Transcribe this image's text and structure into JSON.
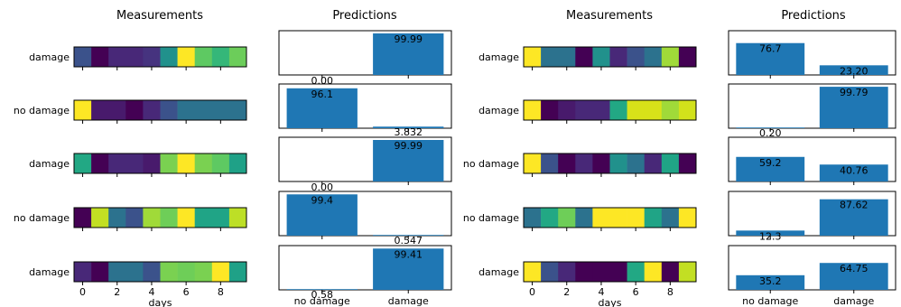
{
  "chart_data": [
    {
      "type": "heatmap",
      "title": "Measurements",
      "xlabel": "days",
      "x_ticks": [
        "0",
        "2",
        "4",
        "6",
        "8"
      ],
      "days": [
        0,
        1,
        2,
        3,
        4,
        5,
        6,
        7,
        8,
        9
      ],
      "rows": [
        {
          "label": "damage",
          "colors": [
            "#3b528b",
            "#440154",
            "#482878",
            "#482878",
            "#46337f",
            "#21918c",
            "#fde725",
            "#5ec962",
            "#35b779",
            "#6ccd5a"
          ]
        },
        {
          "label": "no damage",
          "colors": [
            "#fde725",
            "#481a6c",
            "#481a6c",
            "#440154",
            "#482878",
            "#3b528b",
            "#2c728e",
            "#2c728e",
            "#2c728e",
            "#2c728e"
          ]
        },
        {
          "label": "damage",
          "colors": [
            "#22a884",
            "#440154",
            "#482878",
            "#482878",
            "#481a6c",
            "#7ad151",
            "#fde725",
            "#7ad151",
            "#5ec962",
            "#1fa187"
          ]
        },
        {
          "label": "no damage",
          "colors": [
            "#440154",
            "#c2df23",
            "#2c728e",
            "#3b528b",
            "#a0da39",
            "#6ece58",
            "#fde725",
            "#20a486",
            "#20a486",
            "#bddf26"
          ]
        },
        {
          "label": "damage",
          "colors": [
            "#482878",
            "#440154",
            "#2c728e",
            "#2c728e",
            "#3b528b",
            "#7ad151",
            "#6ece58",
            "#7ad151",
            "#fde725",
            "#1fa187"
          ]
        }
      ]
    },
    {
      "type": "bar",
      "title": "Predictions",
      "categories": [
        "no damage",
        "damage"
      ],
      "ylim": [
        0,
        100
      ],
      "rows": [
        {
          "values": [
            0,
            99.99
          ],
          "labels": [
            "0.00",
            "99.99"
          ]
        },
        {
          "values": [
            96.1,
            3.832
          ],
          "labels": [
            "96.1",
            "3.832"
          ]
        },
        {
          "values": [
            0,
            99.99
          ],
          "labels": [
            "0.00",
            "99.99"
          ]
        },
        {
          "values": [
            99.4,
            0.547
          ],
          "labels": [
            "99.4",
            "0.547"
          ]
        },
        {
          "values": [
            0.58,
            99.41
          ],
          "labels": [
            "0.58",
            "99.41"
          ]
        }
      ]
    },
    {
      "type": "heatmap",
      "title": "Measurements",
      "xlabel": "days",
      "x_ticks": [
        "0",
        "2",
        "4",
        "6",
        "8"
      ],
      "days": [
        0,
        1,
        2,
        3,
        4,
        5,
        6,
        7,
        8,
        9
      ],
      "rows": [
        {
          "label": "damage",
          "colors": [
            "#fde725",
            "#2c728e",
            "#2c728e",
            "#440154",
            "#21918c",
            "#482878",
            "#3b528b",
            "#2c728e",
            "#a0da39",
            "#440154"
          ]
        },
        {
          "label": "damage",
          "colors": [
            "#fde725",
            "#440154",
            "#481a6c",
            "#482878",
            "#482878",
            "#22a884",
            "#d8e219",
            "#d8e219",
            "#a0da39",
            "#d2e21b"
          ]
        },
        {
          "label": "no damage",
          "colors": [
            "#fde725",
            "#3b528b",
            "#440154",
            "#482878",
            "#440154",
            "#21918c",
            "#2c728e",
            "#482878",
            "#20a486",
            "#440154"
          ]
        },
        {
          "label": "no damage",
          "colors": [
            "#2c728e",
            "#22a884",
            "#6ece58",
            "#2c728e",
            "#fde725",
            "#fde725",
            "#fde725",
            "#20a486",
            "#2c728e",
            "#fde725"
          ]
        },
        {
          "label": "damage",
          "colors": [
            "#fde725",
            "#3b528b",
            "#482878",
            "#440154",
            "#440154",
            "#440154",
            "#22a884",
            "#fde725",
            "#440154",
            "#c2df23"
          ]
        }
      ]
    },
    {
      "type": "bar",
      "title": "Predictions",
      "categories": [
        "no damage",
        "damage"
      ],
      "ylim": [
        0,
        100
      ],
      "rows": [
        {
          "values": [
            76.7,
            23.2
          ],
          "labels": [
            "76.7",
            "23.20"
          ]
        },
        {
          "values": [
            0.2,
            99.79
          ],
          "labels": [
            "0.20",
            "99.79"
          ]
        },
        {
          "values": [
            59.2,
            40.76
          ],
          "labels": [
            "59.2",
            "40.76"
          ]
        },
        {
          "values": [
            12.3,
            87.62
          ],
          "labels": [
            "12.3",
            "87.62"
          ]
        },
        {
          "values": [
            35.2,
            64.75
          ],
          "labels": [
            "35.2",
            "64.75"
          ]
        }
      ]
    }
  ]
}
